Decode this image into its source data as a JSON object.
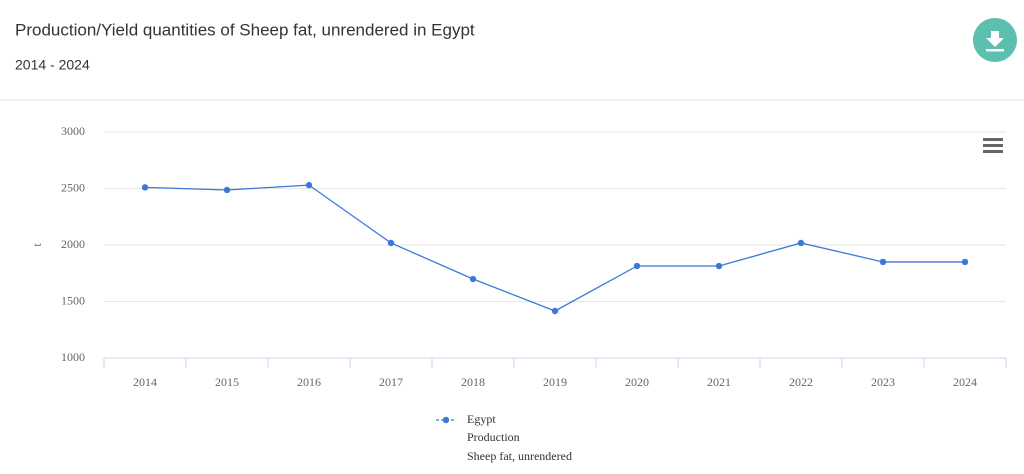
{
  "chart_data": {
    "type": "line",
    "title": "Production/Yield quantities of Sheep fat, unrendered in Egypt",
    "subtitle": "2014 - 2024",
    "y_label": "t",
    "categories": [
      "2014",
      "2015",
      "2016",
      "2017",
      "2018",
      "2019",
      "2020",
      "2021",
      "2022",
      "2023",
      "2024"
    ],
    "series": [
      {
        "name": "Egypt",
        "color": "#3c78d8",
        "values": [
          2510,
          2487,
          2530,
          2018,
          1699,
          1416,
          1814,
          1814,
          2018,
          1850,
          1850
        ]
      }
    ],
    "legend_lines": [
      "Production",
      "Sheep fat, unrendered"
    ],
    "ylim": [
      1000,
      3000
    ],
    "yticks": [
      1000,
      1500,
      2000,
      2500,
      3000
    ],
    "grid": true
  }
}
